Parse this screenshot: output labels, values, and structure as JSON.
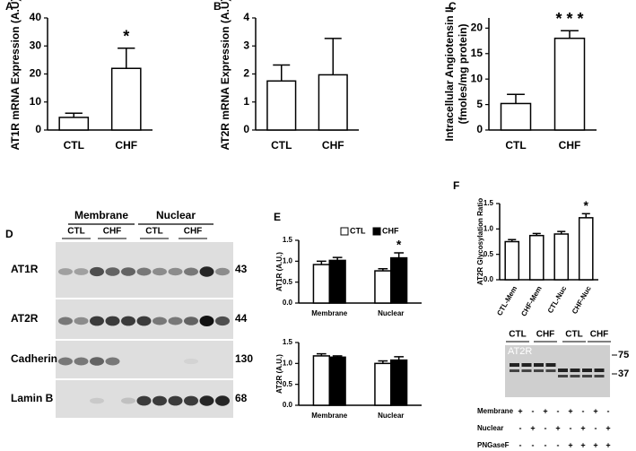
{
  "chart_data": [
    {
      "type": "bar",
      "panel": "A",
      "ylabel": [
        "AT1R mRNA Expression (A.U)"
      ],
      "categories": [
        "CTL",
        "CHF"
      ],
      "values": [
        4.5,
        22
      ],
      "errors": [
        1.5,
        7.2
      ],
      "color": "#ffffff",
      "ylim": [
        0,
        40
      ],
      "yticks": [
        0,
        10,
        20,
        30,
        40
      ],
      "annotation": "*"
    },
    {
      "type": "bar",
      "panel": "B",
      "ylabel": [
        "AT2R mRNA Expression (A.U)"
      ],
      "categories": [
        "CTL",
        "CHF"
      ],
      "values": [
        1.75,
        1.97
      ],
      "errors": [
        0.57,
        1.3
      ],
      "color": "#ffffff",
      "ylim": [
        0,
        4
      ],
      "yticks": [
        0,
        1,
        2,
        3,
        4
      ]
    },
    {
      "type": "bar",
      "panel": "C",
      "ylabel": [
        "Intracellular Angiotensin II",
        "(fmoles/mg protein)"
      ],
      "categories": [
        "CTL",
        "CHF"
      ],
      "values": [
        5.2,
        18
      ],
      "errors": [
        1.8,
        1.5
      ],
      "color": "#ffffff",
      "ylim": [
        0,
        22
      ],
      "yticks": [
        0,
        5,
        10,
        15,
        20
      ],
      "annotation": "* * *"
    },
    {
      "type": "grouped-bar",
      "panel": "E",
      "ylabel": [
        "AT1R  (A.U.)"
      ],
      "categories": [
        "Membrane",
        "Nuclear"
      ],
      "series": [
        {
          "name": "CTL",
          "color": "#ffffff",
          "values": [
            0.92,
            0.77
          ],
          "errors": [
            0.08,
            0.05
          ]
        },
        {
          "name": "CHF",
          "color": "#000000",
          "values": [
            1.02,
            1.08
          ],
          "errors": [
            0.07,
            0.12
          ]
        }
      ],
      "ylim": [
        0,
        1.5
      ],
      "yticks": [
        {
          "value": 0,
          "label": "0.0"
        },
        {
          "value": 0.5,
          "label": "0.5"
        },
        {
          "value": 1,
          "label": "1.0"
        },
        {
          "value": 1.5,
          "label": "1.5"
        }
      ],
      "annotation": "*"
    },
    {
      "type": "grouped-bar",
      "ylabel": [
        "AT2R  (A.U.)"
      ],
      "categories": [
        "Membrane",
        "Nuclear"
      ],
      "series": [
        {
          "color": "#ffffff",
          "values": [
            1.18,
            1.0
          ],
          "errors": [
            0.05,
            0.06
          ]
        },
        {
          "color": "#000000",
          "values": [
            1.15,
            1.08
          ],
          "errors": [
            0.03,
            0.08
          ]
        }
      ],
      "ylim": [
        0,
        1.5
      ],
      "yticks": [
        {
          "value": 0,
          "label": "0.0"
        },
        {
          "value": 0.5,
          "label": "0.5"
        },
        {
          "value": 1,
          "label": "1.0"
        },
        {
          "value": 1.5,
          "label": "1.5"
        }
      ]
    },
    {
      "type": "bar",
      "panel": "F",
      "ylabel": [
        "AT2R Glycosylation Ratio"
      ],
      "categories": [
        "CTL-Mem",
        "CHF-Mem",
        "CTL-Nuc",
        "CHF-Nuc"
      ],
      "values": [
        0.75,
        0.87,
        0.9,
        1.22
      ],
      "errors": [
        0.04,
        0.04,
        0.05,
        0.08
      ],
      "color": "#ffffff",
      "ylim": [
        0,
        1.5
      ],
      "yticks": [
        {
          "value": 0,
          "label": "0.0"
        },
        {
          "value": 0.5,
          "label": "0.5"
        },
        {
          "value": 1,
          "label": "1.0"
        },
        {
          "value": 1.5,
          "label": "1.5"
        }
      ],
      "annotation": "*"
    }
  ],
  "blot_d": {
    "panel": "D",
    "groups": [
      "Membrane",
      "Nuclear"
    ],
    "lanes": [
      "CTL",
      "CHF",
      "CTL",
      "CHF"
    ],
    "rows": [
      {
        "label": "AT1R",
        "mw": "43"
      },
      {
        "label": "AT2R",
        "mw": "44"
      },
      {
        "label": "Cadherin",
        "mw": "130"
      },
      {
        "label": "Lamin B",
        "mw": "68"
      }
    ]
  },
  "blot_f": {
    "lanes": [
      "CTL",
      "CHF",
      "CTL",
      "CHF"
    ],
    "label": "AT2R",
    "markers": [
      "75",
      "37"
    ],
    "treatments": [
      {
        "name": "Membrane",
        "signs": [
          "+",
          "-",
          "+",
          "-",
          "+",
          "-",
          "+",
          "-"
        ]
      },
      {
        "name": "Nuclear",
        "signs": [
          "-",
          "+",
          "-",
          "+",
          "-",
          "+",
          "-",
          "+"
        ]
      },
      {
        "name": "PNGaseF",
        "signs": [
          "-",
          "-",
          "-",
          "-",
          "+",
          "+",
          "+",
          "+"
        ]
      }
    ]
  }
}
